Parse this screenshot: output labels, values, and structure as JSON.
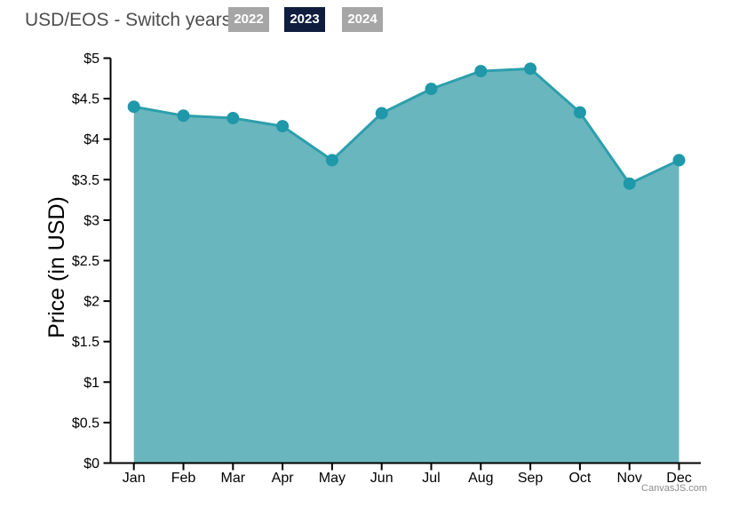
{
  "header": {
    "title": "USD/EOS - Switch years:",
    "buttons": [
      {
        "label": "2022",
        "active": false
      },
      {
        "label": "2023",
        "active": true
      },
      {
        "label": "2024",
        "active": false
      }
    ]
  },
  "colors": {
    "area_fill": "#6ab6be",
    "line": "#2d9fac",
    "marker": "#1f98a9",
    "axis": "#000000",
    "axis_text": "#000000",
    "title_text": "#4d4d4d",
    "button_inactive_bg": "#a6a6a6",
    "button_active_bg": "#101d3f",
    "button_text": "#ffffff",
    "watermark_text": "#8c8c8c"
  },
  "chart_data": {
    "type": "area",
    "title": "",
    "xlabel": "",
    "ylabel": "Price (in USD)",
    "categories": [
      "Jan",
      "Feb",
      "Mar",
      "Apr",
      "May",
      "Jun",
      "Jul",
      "Aug",
      "Sep",
      "Oct",
      "Nov",
      "Dec"
    ],
    "series": [
      {
        "name": "USD/EOS 2023",
        "values": [
          4.4,
          4.29,
          4.26,
          4.16,
          3.74,
          4.32,
          4.62,
          4.84,
          4.87,
          4.33,
          3.45,
          3.74
        ]
      }
    ],
    "ylim": [
      0,
      5
    ],
    "y_tick_step": 0.5,
    "y_tick_labels": [
      "$0",
      "$0.5",
      "$1",
      "$1.5",
      "$2",
      "$2.5",
      "$3",
      "$3.5",
      "$4",
      "$4.5",
      "$5"
    ],
    "grid": false,
    "legend": "none",
    "markers": true
  },
  "watermark": "CanvasJS.com"
}
